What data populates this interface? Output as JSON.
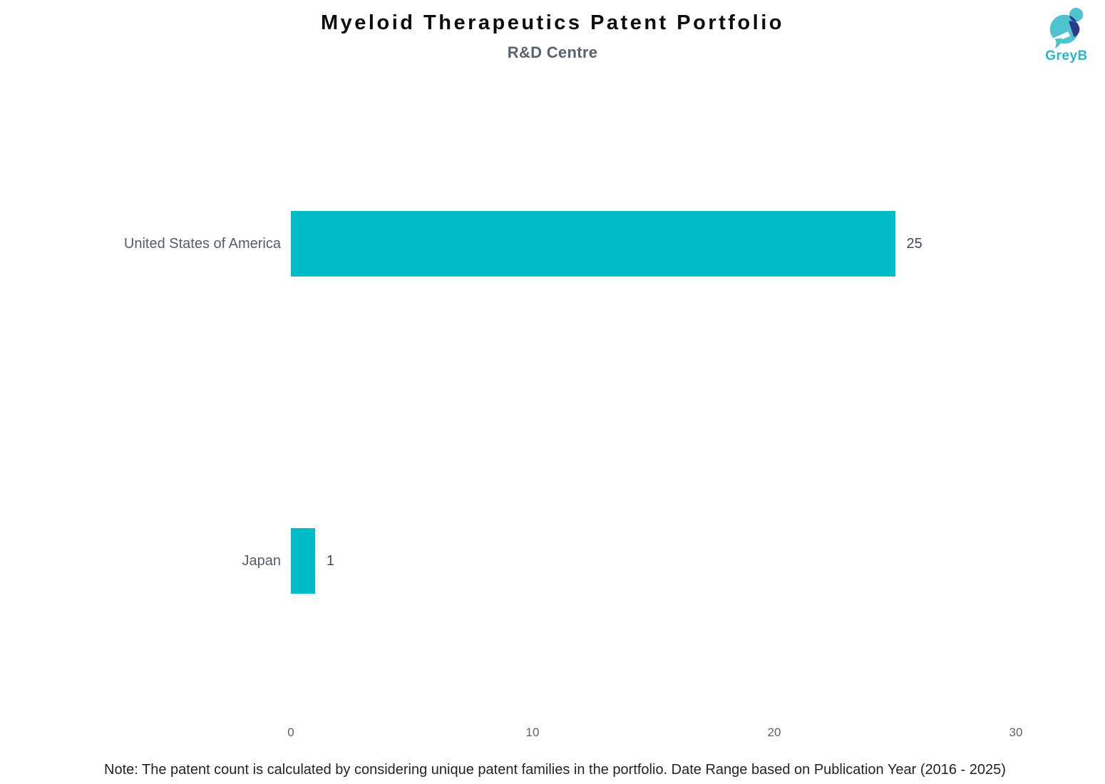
{
  "header": {
    "title": "Myeloid Therapeutics Patent Portfolio",
    "subtitle": "R&D Centre",
    "logo_text": "GreyB"
  },
  "chart_data": {
    "type": "bar",
    "orientation": "horizontal",
    "title": "Myeloid Therapeutics Patent Portfolio",
    "subtitle": "R&D Centre",
    "categories": [
      "United States of America",
      "Japan"
    ],
    "values": [
      25,
      1
    ],
    "x_ticks": [
      0,
      10,
      20,
      30
    ],
    "xlim": [
      0,
      30
    ],
    "xlabel": "",
    "ylabel": "",
    "grid": false,
    "legend": false,
    "bar_color": "#00bcc9"
  },
  "colors": {
    "bar": "#00bcc9",
    "title_text": "#0d0d0d",
    "subtitle_text": "#55646f",
    "category_label": "#4f5e6b",
    "value_label": "#404a54",
    "tick_label": "#5a6268",
    "note_text": "#1f2227",
    "logo_teal": "#4fc3cf",
    "logo_navy": "#2d3a8c",
    "logo_wordmark": "#2ab6c7"
  },
  "footer": {
    "note": "Note: The patent count is calculated by considering unique patent families in the portfolio. Date Range based on Publication Year (2016 - 2025)"
  }
}
